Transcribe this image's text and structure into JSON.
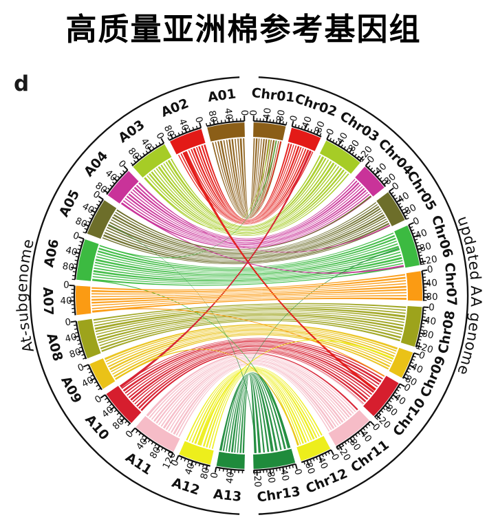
{
  "panel_label": "d",
  "title": "高质量亚洲棉参考基因组",
  "chart_data": {
    "type": "circos-synteny",
    "tick_interval_mb": 10,
    "tick_label_interval_mb": 40,
    "tick_labels_used": [
      0,
      40,
      80,
      120
    ],
    "left_genome": {
      "label": "At-subgenome",
      "chromosomes": [
        {
          "name": "A01",
          "length_mb": 100,
          "color": "#8B5E17"
        },
        {
          "name": "A02",
          "length_mb": 90,
          "color": "#E31A17"
        },
        {
          "name": "A03",
          "length_mb": 103,
          "color": "#A6CC26"
        },
        {
          "name": "A04",
          "length_mb": 85,
          "color": "#C93399"
        },
        {
          "name": "A05",
          "length_mb": 100,
          "color": "#6D6E2A"
        },
        {
          "name": "A06",
          "length_mb": 110,
          "color": "#3CBA41"
        },
        {
          "name": "A07",
          "length_mb": 78,
          "color": "#FB9B13"
        },
        {
          "name": "A08",
          "length_mb": 103,
          "color": "#9DA31C"
        },
        {
          "name": "A09",
          "length_mb": 75,
          "color": "#EAC217"
        },
        {
          "name": "A10",
          "length_mb": 102,
          "color": "#D61E2E"
        },
        {
          "name": "A11",
          "length_mb": 120,
          "color": "#F6BCC7"
        },
        {
          "name": "A12",
          "length_mb": 88,
          "color": "#EDEE1C"
        },
        {
          "name": "A13",
          "length_mb": 75,
          "color": "#1F8B3C"
        }
      ]
    },
    "right_genome": {
      "label": "updated AA genome",
      "chromosomes": [
        {
          "name": "Chr01",
          "length_mb": 100,
          "color": "#8B5E17"
        },
        {
          "name": "Chr02",
          "length_mb": 95,
          "color": "#E31A17"
        },
        {
          "name": "Chr03",
          "length_mb": 125,
          "color": "#A6CC26"
        },
        {
          "name": "Chr04",
          "length_mb": 88,
          "color": "#C93399"
        },
        {
          "name": "Chr05",
          "length_mb": 100,
          "color": "#6D6E2A"
        },
        {
          "name": "Chr06",
          "length_mb": 128,
          "color": "#3CBA41"
        },
        {
          "name": "Chr07",
          "length_mb": 92,
          "color": "#FB9B13"
        },
        {
          "name": "Chr08",
          "length_mb": 125,
          "color": "#9DA31C"
        },
        {
          "name": "Chr09",
          "length_mb": 85,
          "color": "#EAC217"
        },
        {
          "name": "Chr10",
          "length_mb": 128,
          "color": "#D61E2E"
        },
        {
          "name": "Chr11",
          "length_mb": 130,
          "color": "#F6BCC7"
        },
        {
          "name": "Chr12",
          "length_mb": 98,
          "color": "#EDEE1C"
        },
        {
          "name": "Chr13",
          "length_mb": 130,
          "color": "#1F8B3C"
        }
      ]
    },
    "links": [
      {
        "source": "A09",
        "target": "Chr09",
        "color": "#EAC217",
        "striped": true
      },
      {
        "source": "A08",
        "target": "Chr08",
        "color": "#9DA31C",
        "striped": true
      },
      {
        "source": "A05",
        "target": "Chr05",
        "color": "#6D6E2A",
        "striped": true
      },
      {
        "source": "A04",
        "target": "Chr04",
        "color": "#C93399",
        "striped": true
      },
      {
        "source": "A03",
        "target": "Chr03",
        "color": "#A6CC26",
        "striped": true
      },
      {
        "source": "A02",
        "target": "Chr02",
        "color": "#E31A17",
        "striped": true
      },
      {
        "source": "A11",
        "target": "Chr11",
        "color": "#F6BCC7",
        "striped": true
      },
      {
        "source": "A12",
        "target": "Chr12",
        "color": "#EDEE1C",
        "striped": true
      },
      {
        "source": "A10",
        "target": "Chr10",
        "color": "#D61E2E",
        "striped": true
      },
      {
        "source": "A06",
        "target": "Chr06",
        "color": "#3CBA41",
        "striped": true
      },
      {
        "source": "A01",
        "target": "Chr01",
        "color": "#8B5E17",
        "striped": true
      },
      {
        "source": "A02",
        "s0": 62,
        "s1": 72,
        "target": "Chr10",
        "t0": 55,
        "t1": 64,
        "color": "#E31A17",
        "striped": false
      },
      {
        "source": "A10",
        "s0": 2,
        "s1": 10,
        "target": "Chr02",
        "t0": 78,
        "t1": 86,
        "color": "#D61E2E",
        "striped": false
      },
      {
        "source": "A02",
        "s0": 20,
        "s1": 23,
        "target": "Chr01",
        "t0": 92,
        "t1": 96,
        "color": "#E31A17",
        "striped": false
      },
      {
        "source": "A03",
        "s0": 98,
        "s1": 102,
        "target": "Chr01",
        "t0": 55,
        "t1": 58,
        "color": "#A6CC26",
        "striped": false
      },
      {
        "source": "A06",
        "s0": 2,
        "s1": 5,
        "target": "Chr01",
        "t0": 78,
        "t1": 81,
        "color": "#3CBA41",
        "striped": false
      },
      {
        "source": "A04",
        "s0": 78,
        "s1": 82,
        "target": "Chr06",
        "t0": 118,
        "t1": 124,
        "color": "#C93399",
        "striped": false
      },
      {
        "source": "A04",
        "s0": 0,
        "s1": 2,
        "target": "Chr05",
        "t0": 92,
        "t1": 96,
        "color": "#C93399",
        "striped": false
      },
      {
        "source": "A05",
        "s0": 2,
        "s1": 6,
        "target": "Chr04",
        "t0": 80,
        "t1": 85,
        "color": "#6D6E2A",
        "striped": false
      },
      {
        "source": "A13",
        "s0": 0,
        "s1": 2,
        "target": "Chr06",
        "t0": 58,
        "t1": 61,
        "color": "#1F8B3C",
        "striped": false
      },
      {
        "source": "A06",
        "s0": 106,
        "s1": 109,
        "target": "Chr13",
        "t0": 2,
        "t1": 6,
        "color": "#3CBA41",
        "striped": false
      },
      {
        "source": "A05",
        "s0": 52,
        "s1": 53,
        "target": "Chr13",
        "t0": 120,
        "t1": 123,
        "color": "#1F8B3C",
        "striped": false
      },
      {
        "source": "A12",
        "s0": 40,
        "s1": 46,
        "target": "Chr09",
        "t0": 38,
        "t1": 44,
        "color": "#EDEE1C",
        "striped": false
      },
      {
        "source": "A09",
        "s0": 68,
        "s1": 73,
        "target": "Chr12",
        "t0": 88,
        "t1": 94,
        "color": "#EAC217",
        "striped": false
      },
      {
        "source": "A07",
        "s0": 70,
        "s1": 74,
        "target": "Chr10",
        "t0": 2,
        "t1": 6,
        "color": "#FB9B13",
        "striped": false
      },
      {
        "source": "A11",
        "s0": 0,
        "s1": 5,
        "target": "Chr10",
        "t0": 121,
        "t1": 126,
        "color": "#F6BCC7",
        "striped": false
      },
      {
        "source": "A10",
        "s0": 96,
        "s1": 101,
        "target": "Chr11",
        "t0": 1,
        "t1": 6,
        "color": "#D61E2E",
        "striped": false
      },
      {
        "source": "A07",
        "target": "Chr07",
        "color": "#FB9B13",
        "striped": true
      },
      {
        "source": "A13",
        "target": "Chr13",
        "color": "#1F8B3C",
        "striped": true
      }
    ]
  }
}
